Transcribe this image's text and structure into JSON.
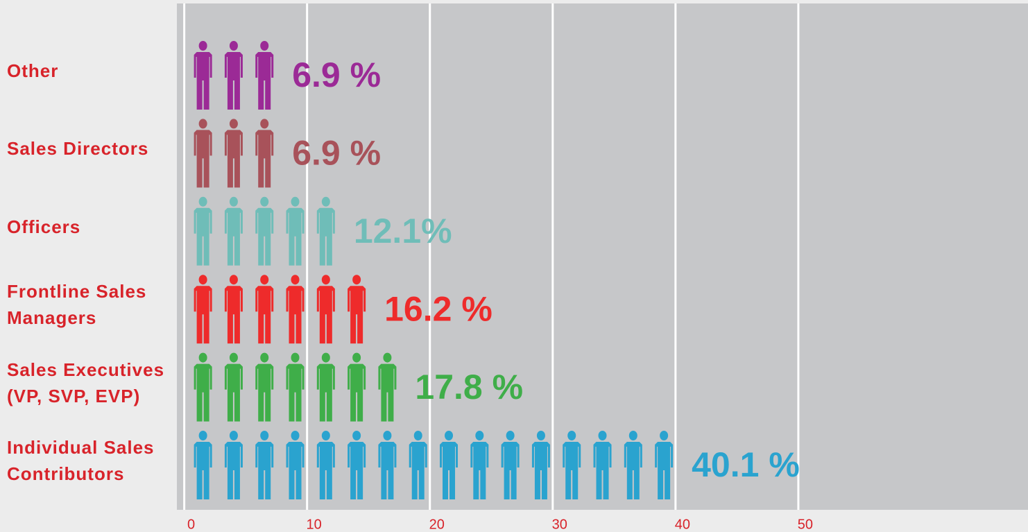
{
  "chart_data": {
    "type": "bar",
    "orientation": "horizontal",
    "categories": [
      "Other",
      "Sales Directors",
      "Officers",
      "Frontline Sales Managers",
      "Sales Executives (VP, SVP, EVP)",
      "Individual Sales Contributors"
    ],
    "values": [
      6.9,
      6.9,
      12.1,
      16.2,
      17.8,
      40.1
    ],
    "value_labels": [
      "6.9 %",
      "6.9 %",
      "12.1%",
      "16.2 %",
      "17.8 %",
      "40.1 %"
    ],
    "colors": [
      "#9b2a96",
      "#a8525a",
      "#6fbdb8",
      "#ee2b2b",
      "#3fae49",
      "#2aa3cf"
    ],
    "xlim": [
      -0.6,
      68.7
    ],
    "xticks": [
      0,
      10,
      20,
      30,
      40,
      50
    ],
    "grid": true
  }
}
